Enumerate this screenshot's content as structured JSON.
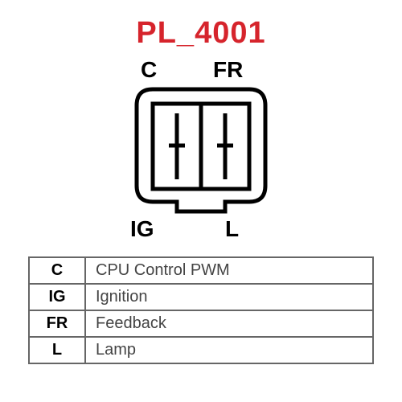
{
  "title": "PL_4001",
  "title_color": "#d6242c",
  "pins": {
    "top_left": "C",
    "top_right": "FR",
    "bottom_left": "IG",
    "bottom_right": "L"
  },
  "pin_label_fontsize": 28,
  "diagram": {
    "stroke": "#000000",
    "stroke_width": 5,
    "fill": "#ffffff"
  },
  "legend": {
    "rows": [
      {
        "code": "C",
        "desc": "CPU Control PWM"
      },
      {
        "code": "IG",
        "desc": "Ignition"
      },
      {
        "code": "FR",
        "desc": "Feedback"
      },
      {
        "code": "L",
        "desc": "Lamp"
      }
    ],
    "border_color": "#666666",
    "code_fontweight": "bold",
    "desc_color": "#444444",
    "fontsize": 20
  }
}
